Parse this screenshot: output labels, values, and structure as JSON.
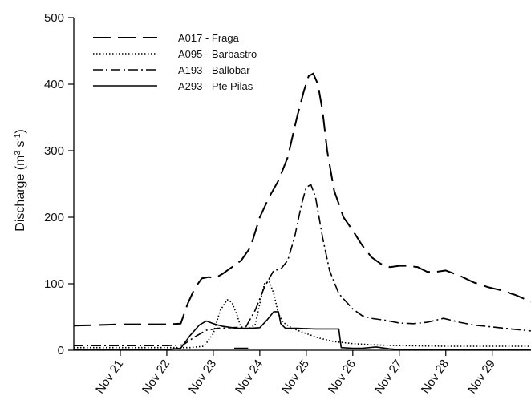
{
  "chart_data": {
    "type": "line",
    "title": "",
    "xlabel": "",
    "ylabel": {
      "main": "Discharge (m",
      "sup1": "3",
      "mid": " s",
      "sup2": "-1",
      "end": ")"
    },
    "ylim": [
      0,
      500
    ],
    "yticks": [
      0,
      100,
      200,
      300,
      400,
      500
    ],
    "xlim": [
      "Nov 20 00:00",
      "Nov 29 20:00"
    ],
    "xticks": [
      {
        "label": "Nov 21",
        "x": 21
      },
      {
        "label": "Nov 22",
        "x": 22
      },
      {
        "label": "Nov 23",
        "x": 23
      },
      {
        "label": "Nov 24",
        "x": 24
      },
      {
        "label": "Nov 25",
        "x": 25
      },
      {
        "label": "Nov 26",
        "x": 26
      },
      {
        "label": "Nov 27",
        "x": 27
      },
      {
        "label": "Nov 28",
        "x": 28
      },
      {
        "label": "Nov 29",
        "x": 29
      }
    ],
    "x_unit": "day of November",
    "grid": false,
    "legend_position": "top-left",
    "series": [
      {
        "name": "A017 - Fraga",
        "style": "long-dash",
        "x": [
          20,
          20.5,
          21,
          21.5,
          22,
          22.3,
          22.45,
          22.6,
          22.75,
          22.9,
          23.05,
          23.2,
          23.4,
          23.6,
          23.8,
          24.0,
          24.2,
          24.4,
          24.6,
          24.8,
          24.95,
          25.05,
          25.15,
          25.25,
          25.35,
          25.45,
          25.6,
          25.8,
          26.0,
          26.2,
          26.4,
          26.6,
          26.8,
          27.0,
          27.2,
          27.4,
          27.6,
          27.8,
          28.0,
          28.3,
          28.6,
          28.9,
          29.2,
          29.5,
          29.83
        ],
        "y": [
          37,
          38,
          39,
          39,
          39,
          40,
          70,
          93,
          108,
          110,
          109,
          115,
          125,
          135,
          155,
          200,
          230,
          255,
          290,
          350,
          390,
          412,
          416,
          400,
          360,
          300,
          240,
          200,
          180,
          158,
          140,
          130,
          125,
          127,
          127,
          125,
          118,
          118,
          120,
          112,
          102,
          95,
          90,
          83,
          73
        ]
      },
      {
        "name": "A095 - Barbastro",
        "style": "dotted",
        "x": [
          20,
          21,
          22,
          22.5,
          22.8,
          23.0,
          23.15,
          23.3,
          23.4,
          23.5,
          23.6,
          23.75,
          23.9,
          24.0,
          24.1,
          24.2,
          24.3,
          24.4,
          24.5,
          24.7,
          25.0,
          25.3,
          25.6,
          26.0,
          26.5,
          27.0,
          28.0,
          29.0,
          29.83
        ],
        "y": [
          4,
          4,
          4,
          4,
          6,
          25,
          60,
          76,
          72,
          55,
          33,
          32,
          38,
          70,
          100,
          104,
          85,
          55,
          42,
          33,
          25,
          18,
          13,
          10,
          8,
          7,
          6,
          6,
          6
        ]
      },
      {
        "name": "A193 - Ballobar",
        "style": "dash-dot",
        "x": [
          20,
          21,
          22,
          22.35,
          22.6,
          22.85,
          23.1,
          23.4,
          23.7,
          23.9,
          24.1,
          24.3,
          24.45,
          24.6,
          24.75,
          24.9,
          25.0,
          25.1,
          25.2,
          25.35,
          25.5,
          25.7,
          26.0,
          26.2,
          26.4,
          26.7,
          27.0,
          27.3,
          27.6,
          27.95,
          28.3,
          28.6,
          29.0,
          29.4,
          29.83
        ],
        "y": [
          7,
          7,
          7,
          8,
          20,
          30,
          33,
          34,
          35,
          60,
          95,
          120,
          122,
          135,
          170,
          220,
          245,
          249,
          230,
          170,
          120,
          85,
          62,
          52,
          48,
          45,
          41,
          40,
          42,
          48,
          42,
          38,
          35,
          32,
          29
        ]
      },
      {
        "name": "A293 - Pte Pilas",
        "style": "solid",
        "x": [
          20,
          21,
          22,
          22.3,
          22.5,
          22.7,
          22.85,
          23.0,
          23.2,
          23.5,
          23.8,
          24.0,
          24.15,
          24.3,
          24.4,
          24.45,
          24.55,
          24.8,
          25.2,
          25.5,
          25.7,
          25.75,
          26.0,
          26.2,
          26.5,
          26.8,
          27.0,
          28.0,
          29.0,
          29.83
        ],
        "y": [
          1,
          1,
          1,
          3,
          22,
          38,
          44,
          40,
          36,
          33,
          33,
          34,
          45,
          58,
          58,
          40,
          33,
          33,
          32,
          32,
          32,
          4,
          3,
          3,
          5,
          2,
          1,
          1,
          1,
          1
        ]
      }
    ],
    "extra_marks": [
      {
        "type": "short-solid-segment",
        "x": [
          23.45,
          23.75
        ],
        "y": 3
      }
    ]
  }
}
